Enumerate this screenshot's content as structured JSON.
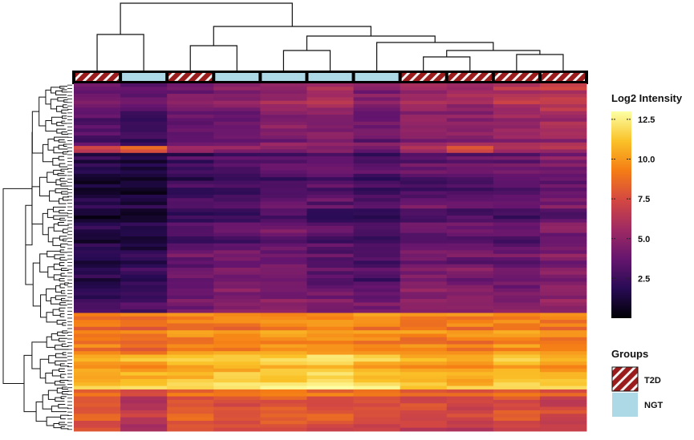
{
  "chart_data": {
    "type": "heatmap",
    "title": "",
    "xlabel": "",
    "ylabel": "",
    "columns": [
      {
        "group": "T2D"
      },
      {
        "group": "NGT"
      },
      {
        "group": "T2D"
      },
      {
        "group": "NGT"
      },
      {
        "group": "NGT"
      },
      {
        "group": "NGT"
      },
      {
        "group": "NGT"
      },
      {
        "group": "T2D"
      },
      {
        "group": "T2D"
      },
      {
        "group": "T2D"
      },
      {
        "group": "T2D"
      }
    ],
    "row_blocks": [
      {
        "rows": 8,
        "values": [
          4.2,
          3.6,
          4.4,
          4.8,
          5.2,
          6.0,
          4.6,
          5.8,
          5.6,
          6.2,
          6.6
        ]
      },
      {
        "rows": 10,
        "values": [
          3.2,
          2.4,
          3.6,
          4.0,
          4.6,
          4.8,
          4.0,
          5.0,
          4.8,
          5.2,
          5.6
        ]
      },
      {
        "rows": 2,
        "values": [
          7.2,
          8.4,
          5.2,
          4.6,
          4.4,
          4.6,
          4.2,
          5.8,
          7.8,
          5.8,
          6.0
        ]
      },
      {
        "rows": 14,
        "values": [
          1.6,
          1.4,
          2.6,
          2.8,
          3.2,
          3.6,
          2.8,
          3.4,
          3.4,
          3.8,
          4.2
        ]
      },
      {
        "rows": 14,
        "values": [
          1.4,
          1.2,
          2.8,
          3.0,
          3.6,
          3.0,
          2.6,
          3.6,
          3.4,
          3.2,
          4.0
        ]
      },
      {
        "rows": 12,
        "values": [
          1.8,
          2.0,
          3.8,
          4.2,
          4.2,
          3.4,
          3.0,
          4.2,
          4.0,
          4.0,
          4.6
        ]
      },
      {
        "rows": 6,
        "values": [
          2.4,
          2.8,
          4.2,
          4.6,
          4.8,
          4.6,
          4.2,
          5.0,
          4.8,
          4.8,
          5.2
        ]
      },
      {
        "rows": 12,
        "values": [
          9.0,
          8.8,
          9.2,
          9.4,
          9.6,
          9.8,
          9.6,
          9.2,
          9.4,
          9.4,
          9.2
        ]
      },
      {
        "rows": 6,
        "values": [
          10.6,
          10.4,
          10.8,
          11.0,
          11.4,
          11.8,
          11.0,
          10.6,
          10.4,
          10.8,
          10.6
        ]
      },
      {
        "rows": 4,
        "values": [
          11.4,
          11.2,
          11.6,
          11.8,
          12.2,
          12.6,
          11.8,
          11.2,
          11.0,
          11.6,
          11.4
        ]
      },
      {
        "rows": 6,
        "values": [
          8.2,
          6.8,
          8.4,
          8.2,
          8.6,
          8.4,
          8.4,
          8.0,
          7.6,
          8.2,
          7.4
        ]
      },
      {
        "rows": 6,
        "values": [
          7.6,
          6.2,
          7.8,
          7.6,
          7.8,
          7.6,
          7.4,
          7.0,
          6.8,
          7.2,
          6.8
        ]
      }
    ],
    "color_scale": {
      "label": "Log2 Intensity",
      "min": 0,
      "max": 13,
      "ticks": [
        2.5,
        5.0,
        7.5,
        10.0,
        12.5
      ],
      "tick_labels": [
        "2.5",
        "5.0",
        "7.5",
        "10.0",
        "12.5"
      ],
      "palette": "inferno",
      "stops": [
        "#000004",
        "#280b54",
        "#65156e",
        "#9f2a63",
        "#d44842",
        "#f57d15",
        "#fac228",
        "#fcffa4"
      ]
    },
    "groups_legend": {
      "title": "Groups",
      "items": [
        {
          "label": "T2D",
          "color": "#b22222",
          "pattern": "striped"
        },
        {
          "label": "NGT",
          "color": "#add8e6",
          "pattern": "solid"
        }
      ]
    },
    "grid": false,
    "legend_position": "right"
  }
}
